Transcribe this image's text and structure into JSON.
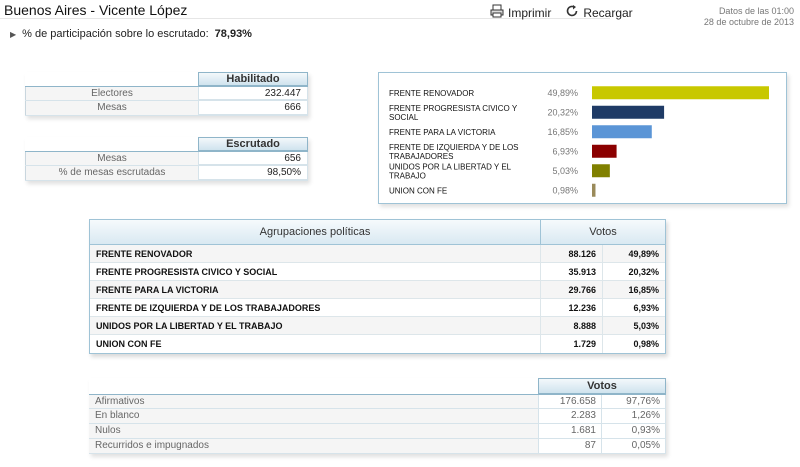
{
  "header": {
    "title": "Buenos Aires - Vicente López",
    "print_label": "Imprimir",
    "reload_label": "Recargar",
    "data_time": "Datos de las 01:00",
    "data_date": "28 de octubre de 2013"
  },
  "participation": {
    "label": "% de participación sobre lo escrutado:",
    "value": "78,93%"
  },
  "habilitado": {
    "header": "Habilitado",
    "rows": [
      {
        "label": "Electores",
        "value": "232.447"
      },
      {
        "label": "Mesas",
        "value": "666"
      }
    ]
  },
  "escrutado": {
    "header": "Escrutado",
    "rows": [
      {
        "label": "Mesas",
        "value": "656"
      },
      {
        "label": "% de mesas escrutadas",
        "value": "98,50%"
      }
    ]
  },
  "chart_data": {
    "type": "bar",
    "orientation": "horizontal",
    "categories": [
      "FRENTE RENOVADOR",
      "FRENTE PROGRESISTA CIVICO Y SOCIAL",
      "FRENTE PARA LA VICTORIA",
      "FRENTE DE IZQUIERDA Y DE LOS TRABAJADORES",
      "UNIDOS POR LA LIBERTAD Y EL TRABAJO",
      "UNION CON FE"
    ],
    "values": [
      49.89,
      20.32,
      16.85,
      6.93,
      5.03,
      0.98
    ],
    "value_labels": [
      "49,89%",
      "20,32%",
      "16,85%",
      "6,93%",
      "5,03%",
      "0,98%"
    ],
    "colors": [
      "#c8c800",
      "#1f3b66",
      "#5b95d6",
      "#8b0000",
      "#808000",
      "#9a8a5a"
    ],
    "xlim": [
      0,
      49.89
    ],
    "grid": false,
    "title": ""
  },
  "main_table": {
    "col_party": "Agrupaciones políticas",
    "col_votes": "Votos",
    "rows": [
      {
        "name": "FRENTE RENOVADOR",
        "votes": "88.126",
        "pct": "49,89%"
      },
      {
        "name": "FRENTE PROGRESISTA CIVICO Y SOCIAL",
        "votes": "35.913",
        "pct": "20,32%"
      },
      {
        "name": "FRENTE PARA LA VICTORIA",
        "votes": "29.766",
        "pct": "16,85%"
      },
      {
        "name": "FRENTE DE IZQUIERDA Y DE LOS TRABAJADORES",
        "votes": "12.236",
        "pct": "6,93%"
      },
      {
        "name": "UNIDOS POR LA LIBERTAD Y EL TRABAJO",
        "votes": "8.888",
        "pct": "5,03%"
      },
      {
        "name": "UNION CON FE",
        "votes": "1.729",
        "pct": "0,98%"
      }
    ]
  },
  "summary_table": {
    "col_votes": "Votos",
    "rows": [
      {
        "label": "Afirmativos",
        "votes": "176.658",
        "pct": "97,76%"
      },
      {
        "label": "En blanco",
        "votes": "2.283",
        "pct": "1,26%"
      },
      {
        "label": "Nulos",
        "votes": "1.681",
        "pct": "0,93%"
      },
      {
        "label": "Recurridos e impugnados",
        "votes": "87",
        "pct": "0,05%"
      }
    ]
  }
}
